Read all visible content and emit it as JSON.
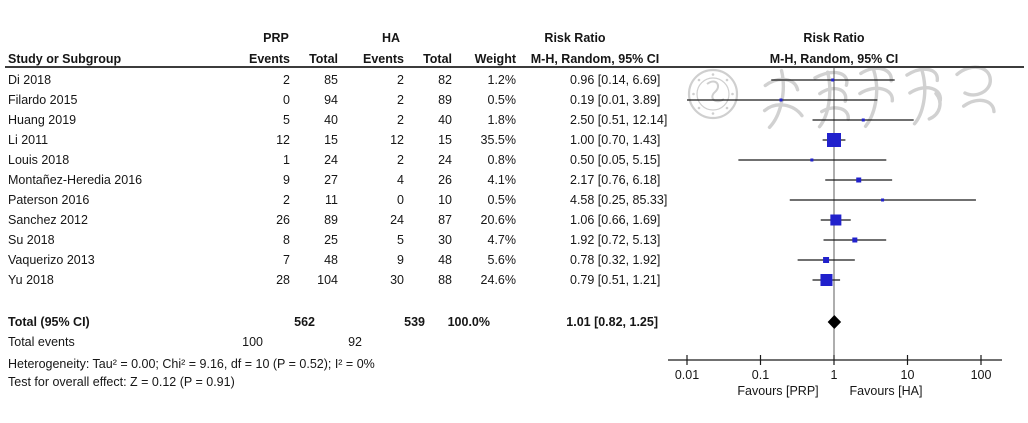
{
  "group_headers": {
    "prp": "PRP",
    "ha": "HA",
    "risk_ratio_table": "Risk Ratio",
    "risk_ratio_plot": "Risk Ratio"
  },
  "column_headers": {
    "study": "Study or Subgroup",
    "prp_events": "Events",
    "prp_total": "Total",
    "ha_events": "Events",
    "ha_total": "Total",
    "weight": "Weight",
    "ci_table": "M-H, Random, 95% CI",
    "ci_plot": "M-H, Random, 95% CI"
  },
  "chart_data": {
    "type": "forest_plot",
    "effect_measure": "Risk Ratio (M-H, Random, 95% CI)",
    "x_axis": {
      "scale": "log10",
      "ticks": [
        0.01,
        0.1,
        1,
        10,
        100
      ],
      "tick_labels": [
        "0.01",
        "0.1",
        "1",
        "10",
        "100"
      ],
      "null_value": 1
    },
    "favours_left": "Favours [PRP]",
    "favours_right": "Favours [HA]",
    "studies": [
      {
        "study": "Di 2018",
        "prp_events": "2",
        "prp_total": "85",
        "ha_events": "2",
        "ha_total": "82",
        "weight": "1.2%",
        "rr": 0.96,
        "low": 0.14,
        "high": 6.69,
        "rr_text": "0.96 [0.14, 6.69]"
      },
      {
        "study": "Filardo 2015",
        "prp_events": "0",
        "prp_total": "94",
        "ha_events": "2",
        "ha_total": "89",
        "weight": "0.5%",
        "rr": 0.19,
        "low": 0.01,
        "high": 3.89,
        "rr_text": "0.19 [0.01, 3.89]"
      },
      {
        "study": "Huang 2019",
        "prp_events": "5",
        "prp_total": "40",
        "ha_events": "2",
        "ha_total": "40",
        "weight": "1.8%",
        "rr": 2.5,
        "low": 0.51,
        "high": 12.14,
        "rr_text": "2.50 [0.51, 12.14]"
      },
      {
        "study": "Li 2011",
        "prp_events": "12",
        "prp_total": "15",
        "ha_events": "12",
        "ha_total": "15",
        "weight": "35.5%",
        "rr": 1.0,
        "low": 0.7,
        "high": 1.43,
        "rr_text": "1.00 [0.70, 1.43]"
      },
      {
        "study": "Louis 2018",
        "prp_events": "1",
        "prp_total": "24",
        "ha_events": "2",
        "ha_total": "24",
        "weight": "0.8%",
        "rr": 0.5,
        "low": 0.05,
        "high": 5.15,
        "rr_text": "0.50 [0.05, 5.15]"
      },
      {
        "study": "Montañez-Heredia 2016",
        "prp_events": "9",
        "prp_total": "27",
        "ha_events": "4",
        "ha_total": "26",
        "weight": "4.1%",
        "rr": 2.17,
        "low": 0.76,
        "high": 6.18,
        "rr_text": "2.17 [0.76, 6.18]"
      },
      {
        "study": "Paterson 2016",
        "prp_events": "2",
        "prp_total": "11",
        "ha_events": "0",
        "ha_total": "10",
        "weight": "0.5%",
        "rr": 4.58,
        "low": 0.25,
        "high": 85.33,
        "rr_text": "4.58 [0.25, 85.33]"
      },
      {
        "study": "Sanchez 2012",
        "prp_events": "26",
        "prp_total": "89",
        "ha_events": "24",
        "ha_total": "87",
        "weight": "20.6%",
        "rr": 1.06,
        "low": 0.66,
        "high": 1.69,
        "rr_text": "1.06 [0.66, 1.69]"
      },
      {
        "study": "Su 2018",
        "prp_events": "8",
        "prp_total": "25",
        "ha_events": "5",
        "ha_total": "30",
        "weight": "4.7%",
        "rr": 1.92,
        "low": 0.72,
        "high": 5.13,
        "rr_text": "1.92 [0.72, 5.13]"
      },
      {
        "study": "Vaquerizo 2013",
        "prp_events": "7",
        "prp_total": "48",
        "ha_events": "9",
        "ha_total": "48",
        "weight": "5.6%",
        "rr": 0.78,
        "low": 0.32,
        "high": 1.92,
        "rr_text": "0.78 [0.32, 1.92]"
      },
      {
        "study": "Yu 2018",
        "prp_events": "28",
        "prp_total": "104",
        "ha_events": "30",
        "ha_total": "88",
        "weight": "24.6%",
        "rr": 0.79,
        "low": 0.51,
        "high": 1.21,
        "rr_text": "0.79 [0.51, 1.21]"
      }
    ],
    "overall": {
      "rr": 1.01,
      "low": 0.82,
      "high": 1.25
    }
  },
  "totals": {
    "label": "Total (95% CI)",
    "prp_total": "562",
    "ha_total": "539",
    "weight": "100.0%",
    "rr_text": "1.01 [0.82, 1.25]",
    "events_label": "Total events",
    "prp_events": "100",
    "ha_events": "92"
  },
  "footnotes": {
    "heterogeneity": "Heterogeneity: Tau² = 0.00; Chi² = 9.16, df = 10 (P = 0.52); I² = 0%",
    "overall_effect": "Test for overall effect: Z = 0.12 (P = 0.91)"
  },
  "watermark": {
    "text": "中华医学会",
    "description": "circular society seal with calligraphy"
  },
  "colors": {
    "marker_blue": "#2121cc",
    "diamond_black": "#000000",
    "line_black": "#1a1a1a",
    "null_line_gray": "#5c5c5c",
    "watermark_gray": "#c7c7c7"
  }
}
